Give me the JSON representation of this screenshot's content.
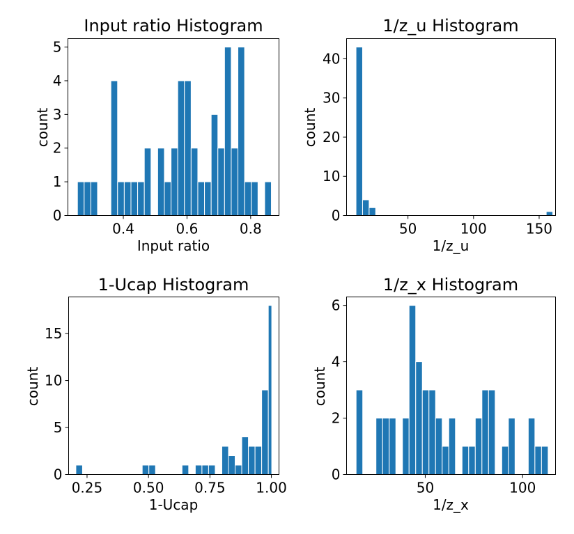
{
  "colors": {
    "bar": "#1f77b4",
    "bar_edge": "#ffffff",
    "axis": "#000000",
    "background": "#ffffff"
  },
  "chart_data": [
    {
      "type": "bar",
      "title": "Input ratio Histogram",
      "xlabel": "Input ratio",
      "ylabel": "count",
      "xlim": [
        0.226,
        0.889
      ],
      "ylim": [
        0,
        5.25
      ],
      "xticks": [
        0.4,
        0.6,
        0.8
      ],
      "xtick_labels": [
        "0.4",
        "0.6",
        "0.8"
      ],
      "yticks": [
        0,
        1,
        2,
        3,
        4,
        5
      ],
      "ytick_labels": [
        "0",
        "1",
        "2",
        "3",
        "4",
        "5"
      ],
      "grid": false,
      "bin_edges": [
        0.256,
        0.277,
        0.298,
        0.319,
        0.34,
        0.361,
        0.382,
        0.403,
        0.424,
        0.445,
        0.466,
        0.487,
        0.508,
        0.529,
        0.55,
        0.571,
        0.592,
        0.613,
        0.634,
        0.655,
        0.676,
        0.697,
        0.718,
        0.739,
        0.76,
        0.781,
        0.802,
        0.823,
        0.844,
        0.865
      ],
      "values": [
        1,
        1,
        1,
        0,
        0,
        4,
        1,
        1,
        1,
        1,
        2,
        0,
        2,
        1,
        2,
        4,
        4,
        2,
        1,
        1,
        3,
        2,
        5,
        2,
        5,
        1,
        1,
        0,
        1
      ]
    },
    {
      "type": "bar",
      "title": "1/z_u Histogram",
      "xlabel": "1/z_u",
      "ylabel": "count",
      "xlim": [
        3.2,
        162.5
      ],
      "ylim": [
        0,
        45.15
      ],
      "xticks": [
        50,
        100,
        150
      ],
      "xtick_labels": [
        "50",
        "100",
        "150"
      ],
      "yticks": [
        0,
        10,
        20,
        30,
        40
      ],
      "ytick_labels": [
        "0",
        "10",
        "20",
        "30",
        "40"
      ],
      "grid": false,
      "bin_edges": [
        10.4,
        15.4,
        20.4,
        25.4,
        30.4,
        35.4,
        40.4,
        45.4,
        50.4,
        55.4,
        60.4,
        65.4,
        70.4,
        75.4,
        80.4,
        85.4,
        90.4,
        95.4,
        100.4,
        105.4,
        110.4,
        115.4,
        120.4,
        125.4,
        130.4,
        135.4,
        140.4,
        145.4,
        150.4,
        155.4,
        160.4
      ],
      "values": [
        43,
        4,
        2,
        0,
        0,
        0,
        0,
        0,
        0,
        0,
        0,
        0,
        0,
        0,
        0,
        0,
        0,
        0,
        0,
        0,
        0,
        0,
        0,
        0,
        0,
        0,
        0,
        0,
        0,
        1
      ]
    },
    {
      "type": "bar",
      "title": "1-Ucap Histogram",
      "xlabel": "1-Ucap",
      "ylabel": "count",
      "xlim": [
        0.175,
        1.031
      ],
      "ylim": [
        0,
        18.9
      ],
      "xticks": [
        0.25,
        0.5,
        0.75,
        1.0
      ],
      "xtick_labels": [
        "0.25",
        "0.50",
        "0.75",
        "1.00"
      ],
      "yticks": [
        0,
        5,
        10,
        15
      ],
      "ytick_labels": [
        "0",
        "5",
        "10",
        "15"
      ],
      "grid": false,
      "bin_edges": [
        0.2045,
        0.2315,
        0.2585,
        0.2855,
        0.3125,
        0.3395,
        0.3665,
        0.3935,
        0.4205,
        0.4475,
        0.4745,
        0.5015,
        0.5285,
        0.5555,
        0.5825,
        0.6095,
        0.6365,
        0.6635,
        0.6905,
        0.7175,
        0.7445,
        0.7715,
        0.7985,
        0.8255,
        0.8525,
        0.8795,
        0.9065,
        0.9335,
        0.9605,
        0.9875,
        1.0015
      ],
      "values": [
        1,
        0,
        0,
        0,
        0,
        0,
        0,
        0,
        0,
        0,
        1,
        1,
        0,
        0,
        0,
        0,
        1,
        0,
        1,
        1,
        1,
        0,
        3,
        2,
        1,
        4,
        3,
        3,
        9,
        18
      ]
    },
    {
      "type": "bar",
      "title": "1/z_x Histogram",
      "xlabel": "1/z_x",
      "ylabel": "count",
      "xlim": [
        9.6,
        116.9
      ],
      "ylim": [
        0,
        6.3
      ],
      "xticks": [
        50,
        100
      ],
      "xtick_labels": [
        "50",
        "100"
      ],
      "yticks": [
        0,
        2,
        4,
        6
      ],
      "ytick_labels": [
        "0",
        "2",
        "4",
        "6"
      ],
      "grid": false,
      "bin_edges": [
        14.5,
        17.9,
        21.3,
        24.7,
        28.1,
        31.5,
        34.9,
        38.3,
        41.7,
        45.1,
        48.5,
        51.9,
        55.3,
        58.7,
        62.1,
        65.5,
        68.9,
        72.3,
        75.7,
        79.1,
        82.5,
        85.9,
        89.3,
        92.7,
        96.1,
        99.5,
        102.9,
        106.3,
        109.7,
        113.1
      ],
      "values": [
        3,
        0,
        0,
        2,
        2,
        2,
        0,
        2,
        6,
        4,
        3,
        3,
        2,
        1,
        2,
        0,
        1,
        1,
        2,
        3,
        3,
        0,
        1,
        2,
        0,
        0,
        2,
        1,
        1
      ]
    }
  ]
}
